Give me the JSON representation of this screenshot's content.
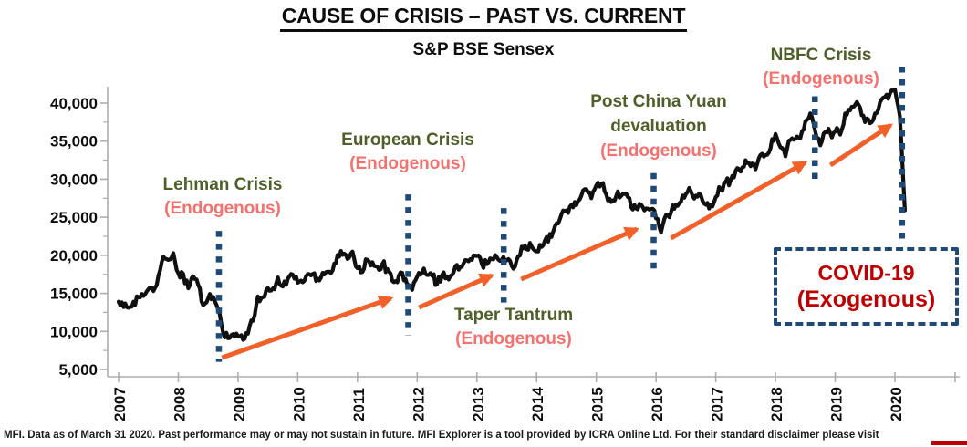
{
  "header": {
    "title": "CAUSE OF CRISIS – PAST VS. CURRENT"
  },
  "footer": {
    "text": "MFI. Data as of March 31 2020. Past performance may or may not sustain in future. MFI Explorer is a tool provided by ICRA Online Ltd. For their standard disclaimer please visit"
  },
  "colors": {
    "crisis_name_green": "#4E5F28",
    "endogenous_salmon": "#F4716E",
    "exogenous_dark_red": "#C00000",
    "arrow_orange": "#F2602A",
    "marker_navy": "#1F4A78",
    "series_black": "#101010",
    "axis_gray": "#ADADAD"
  },
  "annotations": {
    "lehman": {
      "title": "Lehman Crisis",
      "subtitle": "(Endogenous)"
    },
    "european": {
      "title": "European Crisis",
      "subtitle": "(Endogenous)"
    },
    "taper": {
      "title": "Taper Tantrum",
      "subtitle": "(Endogenous)"
    },
    "china": {
      "title": "Post China Yuan",
      "title2": "devaluation",
      "subtitle": "(Endogenous)"
    },
    "nbfc": {
      "title": "NBFC Crisis",
      "subtitle": "(Endogenous)"
    },
    "covid": {
      "title": "COVID-19",
      "subtitle": "(Exogenous)"
    }
  },
  "chart_data": {
    "type": "line",
    "title": "S&P BSE Sensex",
    "xlabel": "",
    "ylabel": "",
    "x_start": 2007,
    "points_per_year": 12,
    "years": [
      2007,
      2008,
      2009,
      2010,
      2011,
      2012,
      2013,
      2014,
      2015,
      2016,
      2017,
      2018,
      2019,
      2020
    ],
    "y_ticks": [
      5000,
      10000,
      15000,
      20000,
      25000,
      30000,
      35000,
      40000
    ],
    "ylim": [
      5000,
      44000
    ],
    "grid": false,
    "legend": "none",
    "series_name": "S&P BSE Sensex (monthly)",
    "values": [
      13900,
      13200,
      13100,
      13900,
      14500,
      14650,
      15550,
      15300,
      17300,
      19800,
      19400,
      20300,
      17650,
      17550,
      15650,
      17250,
      16100,
      13450,
      14350,
      14550,
      12900,
      9800,
      9100,
      9650,
      9400,
      8900,
      9700,
      11400,
      14600,
      14500,
      15700,
      15650,
      17100,
      15900,
      16900,
      17450,
      16400,
      16450,
      17550,
      17550,
      16950,
      17700,
      17850,
      18000,
      20050,
      20050,
      19500,
      20500,
      18300,
      17800,
      19400,
      19100,
      18500,
      18850,
      18200,
      16650,
      16450,
      17700,
      16100,
      15450,
      17200,
      17750,
      17400,
      17300,
      16200,
      17400,
      17250,
      17400,
      18750,
      18500,
      19350,
      19400,
      19900,
      18850,
      18850,
      19500,
      19750,
      19400,
      19350,
      18600,
      19400,
      21150,
      20800,
      21150,
      20500,
      21100,
      22400,
      22400,
      24200,
      25400,
      25900,
      26650,
      26600,
      27850,
      28700,
      27500,
      29200,
      29350,
      28000,
      27000,
      27800,
      27800,
      28100,
      26300,
      26150,
      26650,
      26150,
      26100,
      24850,
      23000,
      25300,
      25600,
      26700,
      27000,
      28050,
      28450,
      27850,
      27900,
      26650,
      26600,
      27650,
      28750,
      29650,
      29900,
      31100,
      31000,
      32500,
      31700,
      31300,
      33200,
      33150,
      34050,
      35950,
      34200,
      33000,
      35150,
      35300,
      35400,
      37600,
      38650,
      36250,
      34450,
      36200,
      36050,
      36250,
      35850,
      38650,
      39050,
      39750,
      39400,
      37500,
      37350,
      38650,
      40100,
      40800,
      41250,
      41800,
      38300,
      25900
    ],
    "crisis_markers": [
      {
        "name": "lehman-crisis",
        "year": 2008.68,
        "v_top": 23200,
        "v_bottom": 6000
      },
      {
        "name": "european-crisis",
        "year": 2011.85,
        "v_top": 28000,
        "v_bottom": 9500
      },
      {
        "name": "taper-tantrum",
        "year": 2013.45,
        "v_top": 26200,
        "v_bottom": 13800
      },
      {
        "name": "china-yuan-devaluation",
        "year": 2015.96,
        "v_top": 30800,
        "v_bottom": 18100
      },
      {
        "name": "nbfc-crisis",
        "year": 2018.66,
        "v_top": 40900,
        "v_bottom": 29800
      },
      {
        "name": "covid-19",
        "year": 2020.12,
        "v_top": 44800,
        "v_bottom": 21400
      }
    ],
    "arrows": [
      {
        "x1": 2008.73,
        "v1": 6550,
        "x2": 2011.56,
        "v2": 14350
      },
      {
        "x1": 2012.03,
        "v1": 13150,
        "x2": 2013.25,
        "v2": 17350
      },
      {
        "x1": 2013.74,
        "v1": 16850,
        "x2": 2015.68,
        "v2": 23450
      },
      {
        "x1": 2016.25,
        "v1": 22250,
        "x2": 2018.5,
        "v2": 32200
      },
      {
        "x1": 2018.92,
        "v1": 31850,
        "x2": 2019.93,
        "v2": 37100
      }
    ]
  }
}
